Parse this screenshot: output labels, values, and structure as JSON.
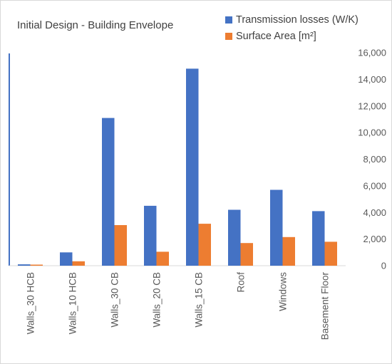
{
  "chart_data": {
    "type": "bar",
    "title": "Initial Design - Building Envelope",
    "categories": [
      "Walls_30 HCB",
      "Walls_10 HCB",
      "Walls_30 CB",
      "Walls_20 CB",
      "Walls_15 CB",
      "Roof",
      "Windows",
      "Basement Floor"
    ],
    "series": [
      {
        "name": "Transmission losses (W/K)",
        "color": "#4472c4",
        "values": [
          100,
          1000,
          11100,
          4500,
          14800,
          4200,
          5700,
          4100
        ]
      },
      {
        "name": "Surface Area [m²]",
        "color": "#ed7d31",
        "values": [
          80,
          330,
          3050,
          1050,
          3150,
          1700,
          2150,
          1800
        ]
      }
    ],
    "ylim": [
      0,
      16000
    ],
    "yticks": [
      "0",
      "2,000",
      "4,000",
      "6,000",
      "8,000",
      "10,000",
      "12,000",
      "14,000",
      "16,000"
    ],
    "y_axis_position": "right",
    "legend_position": "top-right",
    "grid": false
  }
}
